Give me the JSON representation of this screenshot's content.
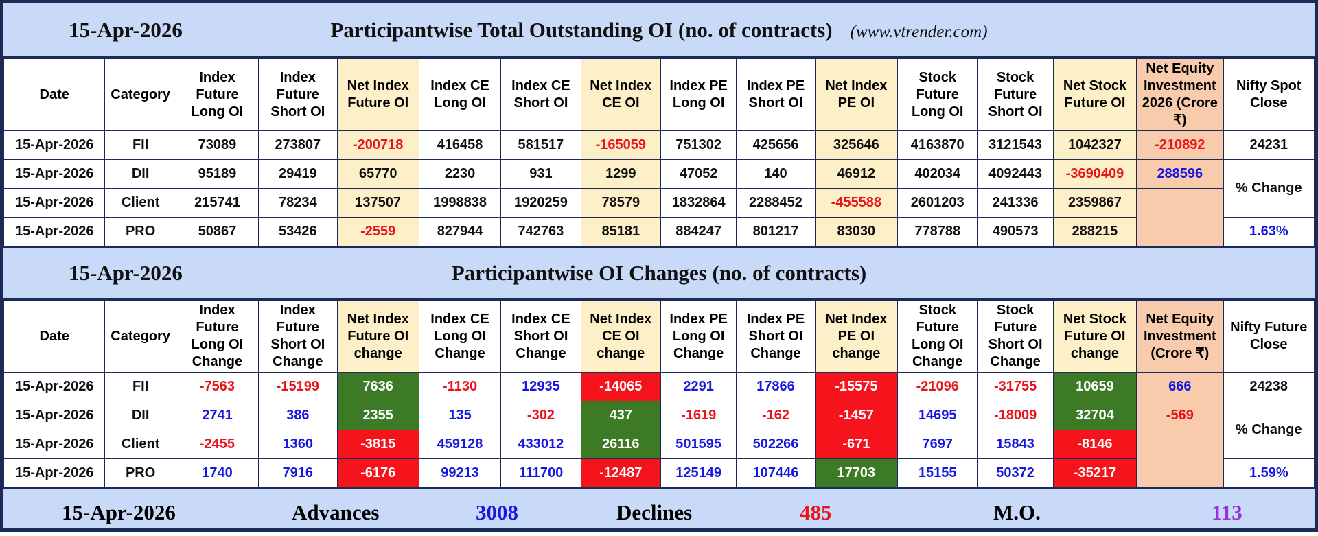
{
  "oi": {
    "date": "15-Apr-2026",
    "title": "Participantwise Total Outstanding OI (no. of contracts)",
    "source": "(www.vtrender.com)",
    "headers": [
      "Date",
      "Category",
      "Index Future Long OI",
      "Index Future Short OI",
      "Net Index Future OI",
      "Index CE Long OI",
      "Index CE Short OI",
      "Net Index CE OI",
      "Index PE Long OI",
      "Index PE Short OI",
      "Net Index PE OI",
      "Stock Future Long OI",
      "Stock Future Short OI",
      "Net Stock Future OI",
      "Net Equity Investment 2026 (Crore ₹)",
      "Nifty Spot Close"
    ],
    "rows": [
      {
        "date": "15-Apr-2026",
        "category": "FII",
        "values": [
          73089,
          273807,
          -200718,
          416458,
          581517,
          -165059,
          751302,
          425656,
          325646,
          4163870,
          3121543,
          1042327
        ]
      },
      {
        "date": "15-Apr-2026",
        "category": "DII",
        "values": [
          95189,
          29419,
          65770,
          2230,
          931,
          1299,
          47052,
          140,
          46912,
          402034,
          4092443,
          -3690409
        ]
      },
      {
        "date": "15-Apr-2026",
        "category": "Client",
        "values": [
          215741,
          78234,
          137507,
          1998838,
          1920259,
          78579,
          1832864,
          2288452,
          -455588,
          2601203,
          241336,
          2359867
        ]
      },
      {
        "date": "15-Apr-2026",
        "category": "PRO",
        "values": [
          50867,
          53426,
          -2559,
          827944,
          742763,
          85181,
          884247,
          801217,
          83030,
          778788,
          490573,
          288215
        ]
      }
    ],
    "equity": [
      -210892,
      288596
    ],
    "nifty": {
      "close": 24231,
      "change_label": "% Change",
      "change": "1.63%"
    }
  },
  "changes": {
    "date": "15-Apr-2026",
    "title": "Participantwise OI Changes (no. of contracts)",
    "headers": [
      "Date",
      "Category",
      "Index Future Long OI Change",
      "Index Future Short OI Change",
      "Net Index Future OI change",
      "Index CE Long OI Change",
      "Index CE Short OI Change",
      "Net Index CE OI change",
      "Index PE Long OI Change",
      "Index PE Short OI Change",
      "Net Index PE OI change",
      "Stock Future Long OI Change",
      "Stock Future Short OI Change",
      "Net Stock Future OI change",
      "Net Equity Investment (Crore ₹)",
      "Nifty Future Close"
    ],
    "rows": [
      {
        "date": "15-Apr-2026",
        "category": "FII",
        "values": [
          -7563,
          -15199,
          7636,
          -1130,
          12935,
          -14065,
          2291,
          17866,
          -15575,
          -21096,
          -31755,
          10659
        ]
      },
      {
        "date": "15-Apr-2026",
        "category": "DII",
        "values": [
          2741,
          386,
          2355,
          135,
          -302,
          437,
          -1619,
          -162,
          -1457,
          14695,
          -18009,
          32704
        ]
      },
      {
        "date": "15-Apr-2026",
        "category": "Client",
        "values": [
          -2455,
          1360,
          -3815,
          459128,
          433012,
          26116,
          501595,
          502266,
          -671,
          7697,
          15843,
          -8146
        ]
      },
      {
        "date": "15-Apr-2026",
        "category": "PRO",
        "values": [
          1740,
          7916,
          -6176,
          99213,
          111700,
          -12487,
          125149,
          107446,
          17703,
          15155,
          50372,
          -35217
        ]
      }
    ],
    "equity": [
      666,
      -569
    ],
    "nifty": {
      "close": 24238,
      "change_label": "% Change",
      "change": "1.59%"
    }
  },
  "footer": {
    "date": "15-Apr-2026",
    "advances_label": "Advances",
    "advances": 3008,
    "declines_label": "Declines",
    "declines": 485,
    "mo_label": "M.O.",
    "mo": 113
  }
}
